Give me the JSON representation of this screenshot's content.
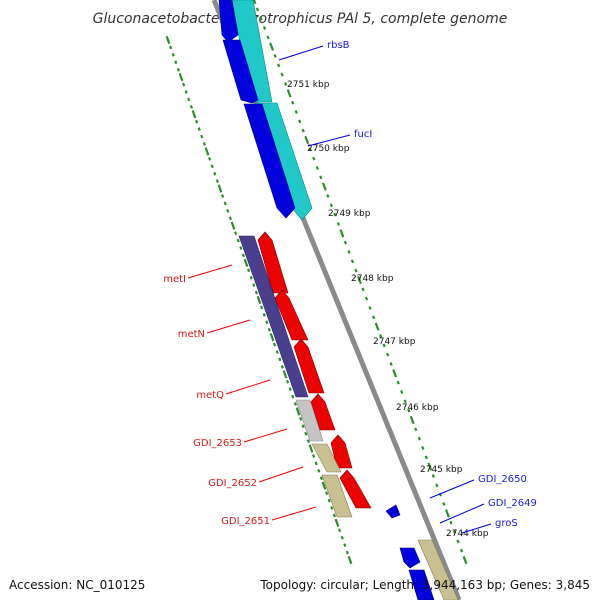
{
  "title": "Gluconacetobacter diazotrophicus PAl 5, complete genome",
  "footer": {
    "accession": "Accession: NC_010125",
    "topology": "Topology: circular; Length: 3,944,163 bp; Genes: 3,845"
  },
  "ticks": [
    "2751 kbp",
    "2750 kbp",
    "2749 kbp",
    "2748 kbp",
    "2747 kbp",
    "2746 kbp",
    "2745 kbp",
    "2744 kbp"
  ],
  "forward_labels": [
    "rbsB",
    "fucI",
    "GDI_2650",
    "GDI_2649",
    "groS"
  ],
  "reverse_labels": [
    "metI",
    "metN",
    "metQ",
    "GDI_2653",
    "GDI_2652",
    "GDI_2651"
  ],
  "colors": {
    "forward_cds": "#0000dd",
    "forward_gene": "#20c8c8",
    "reverse_cds": "#ee0000",
    "reverse_gene": "#4a3f8f",
    "gene_tan": "#c8c090",
    "gene_grey": "#c4c4c4",
    "backbone": "#888888",
    "ruler": "#2e8b2e"
  }
}
